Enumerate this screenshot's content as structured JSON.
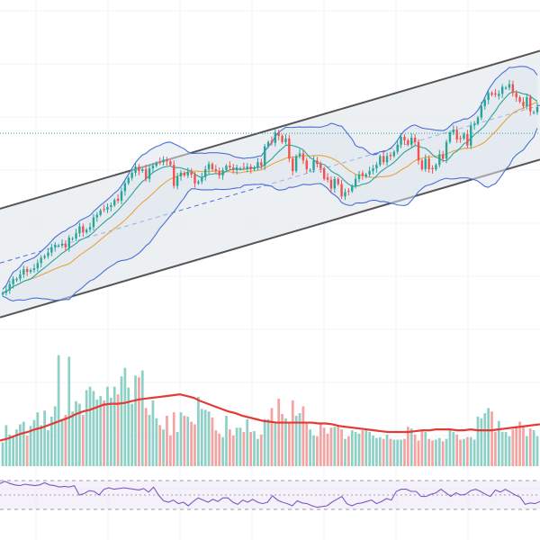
{
  "chart_data": [
    {
      "type": "candlestick",
      "panel": "price",
      "title": "",
      "xlabel": "",
      "ylabel": "",
      "ylim": [
        0,
        390
      ],
      "grid": true,
      "colors": {
        "up": "#26a69a",
        "down": "#ef5350",
        "channel_line": "#555555",
        "channel_fill": "#e8ecf0",
        "bollinger": "#4a6fd8",
        "ma_fast": "#26a69a",
        "ma_slow": "#e8a33c",
        "reference_line": "#26a69a"
      },
      "channel": {
        "upper_start": 152,
        "upper_end": 332,
        "lower_start": 28,
        "lower_end": 208,
        "mid_start": 90,
        "mid_end": 270
      },
      "reference_level": 238,
      "close": [
        56,
        59,
        66,
        72,
        72,
        77,
        83,
        80,
        82,
        84,
        90,
        96,
        98,
        102,
        108,
        111,
        110,
        112,
        108,
        119,
        118,
        124,
        132,
        125,
        128,
        131,
        142,
        145,
        150,
        151,
        154,
        156,
        162,
        161,
        172,
        181,
        187,
        193,
        200,
        195,
        197,
        186,
        198,
        201,
        204,
        205,
        208,
        206,
        202,
        178,
        189,
        193,
        190,
        194,
        191,
        181,
        183,
        188,
        197,
        203,
        197,
        195,
        190,
        196,
        201,
        199,
        196,
        199,
        198,
        199,
        200,
        197,
        199,
        205,
        201,
        223,
        228,
        227,
        239,
        235,
        228,
        232,
        209,
        195,
        212,
        215,
        207,
        197,
        196,
        207,
        203,
        198,
        186,
        185,
        175,
        186,
        180,
        166,
        171,
        172,
        178,
        186,
        191,
        190,
        191,
        195,
        198,
        202,
        212,
        205,
        212,
        212,
        217,
        225,
        234,
        230,
        225,
        233,
        228,
        207,
        197,
        209,
        197,
        197,
        202,
        214,
        209,
        228,
        239,
        242,
        231,
        232,
        237,
        224,
        247,
        249,
        256,
        269,
        276,
        284,
        282,
        282,
        283,
        291,
        290,
        294,
        284,
        279,
        274,
        269,
        279,
        263,
        262,
        268
      ]
    },
    {
      "type": "bar",
      "panel": "volume",
      "values": [
        28,
        48,
        37,
        35,
        43,
        49,
        52,
        36,
        47,
        54,
        63,
        48,
        65,
        42,
        58,
        70,
        130,
        55,
        60,
        128,
        64,
        76,
        73,
        60,
        89,
        93,
        88,
        78,
        82,
        77,
        93,
        80,
        93,
        84,
        105,
        115,
        92,
        73,
        106,
        104,
        112,
        68,
        60,
        77,
        56,
        48,
        43,
        59,
        36,
        63,
        40,
        63,
        59,
        58,
        52,
        49,
        81,
        67,
        66,
        64,
        57,
        42,
        38,
        34,
        59,
        43,
        36,
        45,
        45,
        40,
        55,
        40,
        41,
        32,
        37,
        55,
        55,
        68,
        52,
        79,
        61,
        56,
        52,
        77,
        59,
        62,
        70,
        51,
        43,
        36,
        35,
        49,
        45,
        38,
        45,
        46,
        48,
        43,
        32,
        35,
        42,
        40,
        38,
        42,
        43,
        40,
        36,
        33,
        34,
        32,
        37,
        32,
        31,
        31,
        31,
        32,
        46,
        44,
        37,
        30,
        41,
        40,
        32,
        30,
        31,
        33,
        29,
        32,
        43,
        40,
        37,
        31,
        32,
        34,
        34,
        31,
        58,
        56,
        62,
        68,
        64,
        40,
        53,
        40,
        40,
        35,
        43,
        47,
        52,
        47,
        35,
        44,
        42,
        35
      ],
      "ma": [
        30,
        32,
        35,
        38,
        40,
        43,
        45,
        48,
        51,
        54,
        57,
        61,
        64,
        66,
        69,
        72,
        73,
        73,
        74,
        76,
        78,
        79,
        80,
        81,
        82,
        83,
        84,
        82,
        80,
        76,
        73,
        70,
        67,
        64,
        62,
        59,
        57,
        55,
        53,
        52,
        51,
        51,
        51,
        51,
        51,
        51,
        50,
        50,
        49,
        47,
        46,
        45,
        44,
        43,
        42,
        41,
        40,
        40,
        40,
        40,
        41,
        42,
        42,
        43,
        43,
        43,
        42,
        42,
        43,
        42,
        42,
        42,
        43,
        44,
        45,
        46,
        47,
        48,
        49
      ]
    },
    {
      "type": "line",
      "panel": "oscillator",
      "levels": [
        70,
        50,
        30
      ],
      "values": [
        66,
        69,
        66,
        64,
        63,
        65,
        64,
        63,
        64,
        67,
        64,
        63,
        61,
        62,
        61,
        63,
        50,
        52,
        56,
        55,
        50,
        58,
        60,
        58,
        59,
        60,
        59,
        58,
        57,
        59,
        54,
        61,
        50,
        42,
        40,
        43,
        38,
        40,
        35,
        41,
        46,
        43,
        40,
        44,
        41,
        46,
        46,
        40,
        37,
        43,
        40,
        44,
        40,
        38,
        40,
        49,
        43,
        40,
        38,
        35,
        42,
        39,
        38,
        35,
        33,
        34,
        35,
        40,
        44,
        48,
        38,
        35,
        38,
        39,
        41,
        43,
        38,
        41,
        45,
        43,
        55,
        58,
        58,
        55,
        55,
        48,
        48,
        51,
        53,
        58,
        53,
        48,
        53,
        50,
        51,
        56,
        58,
        55,
        51,
        48,
        57,
        54,
        58,
        54,
        50,
        47,
        37,
        39,
        38,
        41
      ]
    }
  ]
}
